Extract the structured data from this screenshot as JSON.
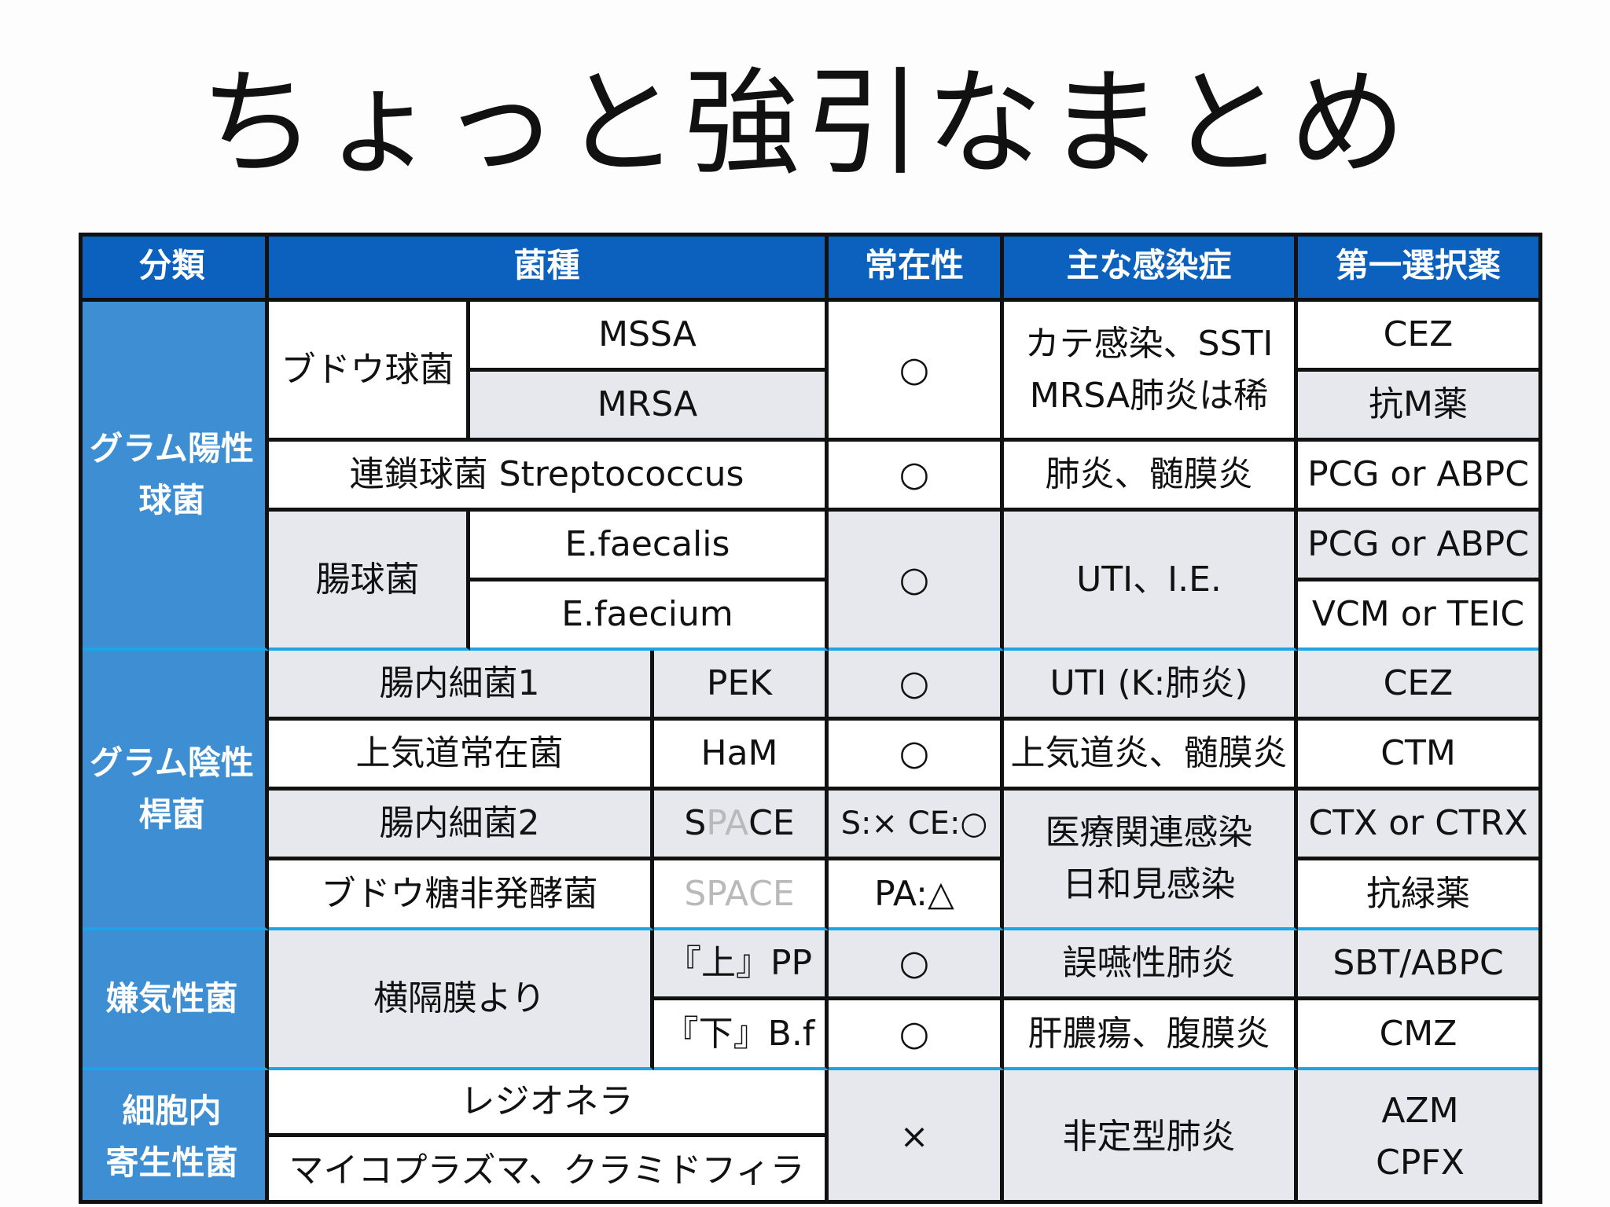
{
  "title": "ちょっと強引なまとめ",
  "headers": [
    "分類",
    "菌種",
    "常在性",
    "主な感染症",
    "第一選択薬"
  ],
  "categories": {
    "gp": "グラム陽性\n球菌",
    "gn": "グラム陰性\n桿菌",
    "anaerobe": "嫌気性菌",
    "intracellular": "細胞内\n寄生性菌"
  },
  "species": {
    "staph_group": "ブドウ球菌",
    "mssa": "MSSA",
    "mrsa": "MRSA",
    "strep": "連鎖球菌 Streptococcus",
    "entero_group": "腸球菌",
    "faecalis": "E.faecalis",
    "faecium": "E.faecium",
    "gut1": "腸内細菌1",
    "pek": "PEK",
    "upper": "上気道常在菌",
    "ham": "HaM",
    "gut2": "腸内細菌2",
    "space1_a": "S",
    "space1_b": "PA",
    "space1_c": "CE",
    "nonferm": "ブドウ糖非発酵菌",
    "space2_a": "S",
    "space2_b": "PA",
    "space2_c": "CE",
    "diaphragm": "横隔膜より",
    "upper_pp": "『上』PP",
    "lower_bf": "『下』B.f",
    "legionella": "レジオネラ",
    "myco": "マイコプラズマ、クラミドフィラ"
  },
  "resident": {
    "staph": "○",
    "strep": "○",
    "entero": "○",
    "gut1": "○",
    "upper": "○",
    "gut2": "S:× CE:○",
    "nonferm": "PA:△",
    "pp": "○",
    "bf": "○",
    "intracellular": "×"
  },
  "infections": {
    "staph": "カテ感染、SSTI\nMRSA肺炎は稀",
    "strep": "肺炎、髄膜炎",
    "entero": "UTI、I.E.",
    "gut1": "UTI (K:肺炎)",
    "upper": "上気道炎、髄膜炎",
    "gut2_nonferm": "医療関連感染\n日和見感染",
    "pp": "誤嚥性肺炎",
    "bf": "肝膿瘍、腹膜炎",
    "intracellular": "非定型肺炎"
  },
  "drugs": {
    "mssa": "CEZ",
    "mrsa": "抗M薬",
    "strep": "PCG or ABPC",
    "faecalis": "PCG or ABPC",
    "faecium": "VCM or TEIC",
    "gut1": "CEZ",
    "upper": "CTM",
    "gut2": "CTX or CTRX",
    "nonferm": "抗緑薬",
    "pp": "SBT/ABPC",
    "bf": "CMZ",
    "intracellular": "AZM\nCPFX"
  }
}
